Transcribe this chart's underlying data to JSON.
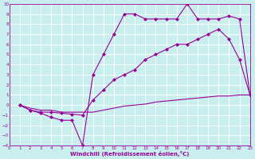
{
  "xlabel": "Windchill (Refroidissement éolien,°C)",
  "background_color": "#c8eeee",
  "grid_color": "#b0d8d8",
  "line_color": "#990099",
  "xlim": [
    0,
    23
  ],
  "ylim": [
    -4,
    10
  ],
  "xticks": [
    0,
    1,
    2,
    3,
    4,
    5,
    6,
    7,
    8,
    9,
    10,
    11,
    12,
    13,
    14,
    15,
    16,
    17,
    18,
    19,
    20,
    21,
    22,
    23
  ],
  "yticks": [
    -4,
    -3,
    -2,
    -1,
    0,
    1,
    2,
    3,
    4,
    5,
    6,
    7,
    8,
    9,
    10
  ],
  "line1_x": [
    1,
    2,
    3,
    4,
    5,
    6,
    7,
    8,
    9,
    10,
    11,
    12,
    13,
    14,
    15,
    16,
    17,
    18,
    19,
    20,
    21,
    22,
    23
  ],
  "line1_y": [
    0.0,
    -0.3,
    -0.5,
    -0.5,
    -0.7,
    -0.7,
    -0.7,
    -0.7,
    -0.5,
    -0.3,
    -0.1,
    0.0,
    0.1,
    0.3,
    0.4,
    0.5,
    0.6,
    0.7,
    0.8,
    0.9,
    0.9,
    1.0,
    1.0
  ],
  "line2_x": [
    1,
    2,
    3,
    4,
    5,
    6,
    7,
    8,
    9,
    10,
    11,
    12,
    13,
    14,
    15,
    16,
    17,
    18,
    19,
    20,
    21,
    22,
    23
  ],
  "line2_y": [
    0.0,
    -0.5,
    -0.8,
    -1.2,
    -1.5,
    -1.5,
    -4.0,
    3.0,
    5.0,
    7.0,
    9.0,
    9.0,
    8.5,
    8.5,
    8.5,
    8.5,
    10.0,
    8.5,
    8.5,
    8.5,
    8.8,
    8.5,
    1.0
  ],
  "line3_x": [
    1,
    2,
    3,
    4,
    5,
    6,
    7,
    8,
    9,
    10,
    11,
    12,
    13,
    14,
    15,
    16,
    17,
    18,
    19,
    20,
    21,
    22,
    23
  ],
  "line3_y": [
    0.0,
    -0.5,
    -0.7,
    -0.7,
    -0.8,
    -0.9,
    -1.0,
    0.5,
    1.5,
    2.5,
    3.0,
    3.5,
    4.5,
    5.0,
    5.5,
    6.0,
    6.0,
    6.5,
    7.0,
    7.5,
    6.5,
    4.5,
    1.0
  ]
}
